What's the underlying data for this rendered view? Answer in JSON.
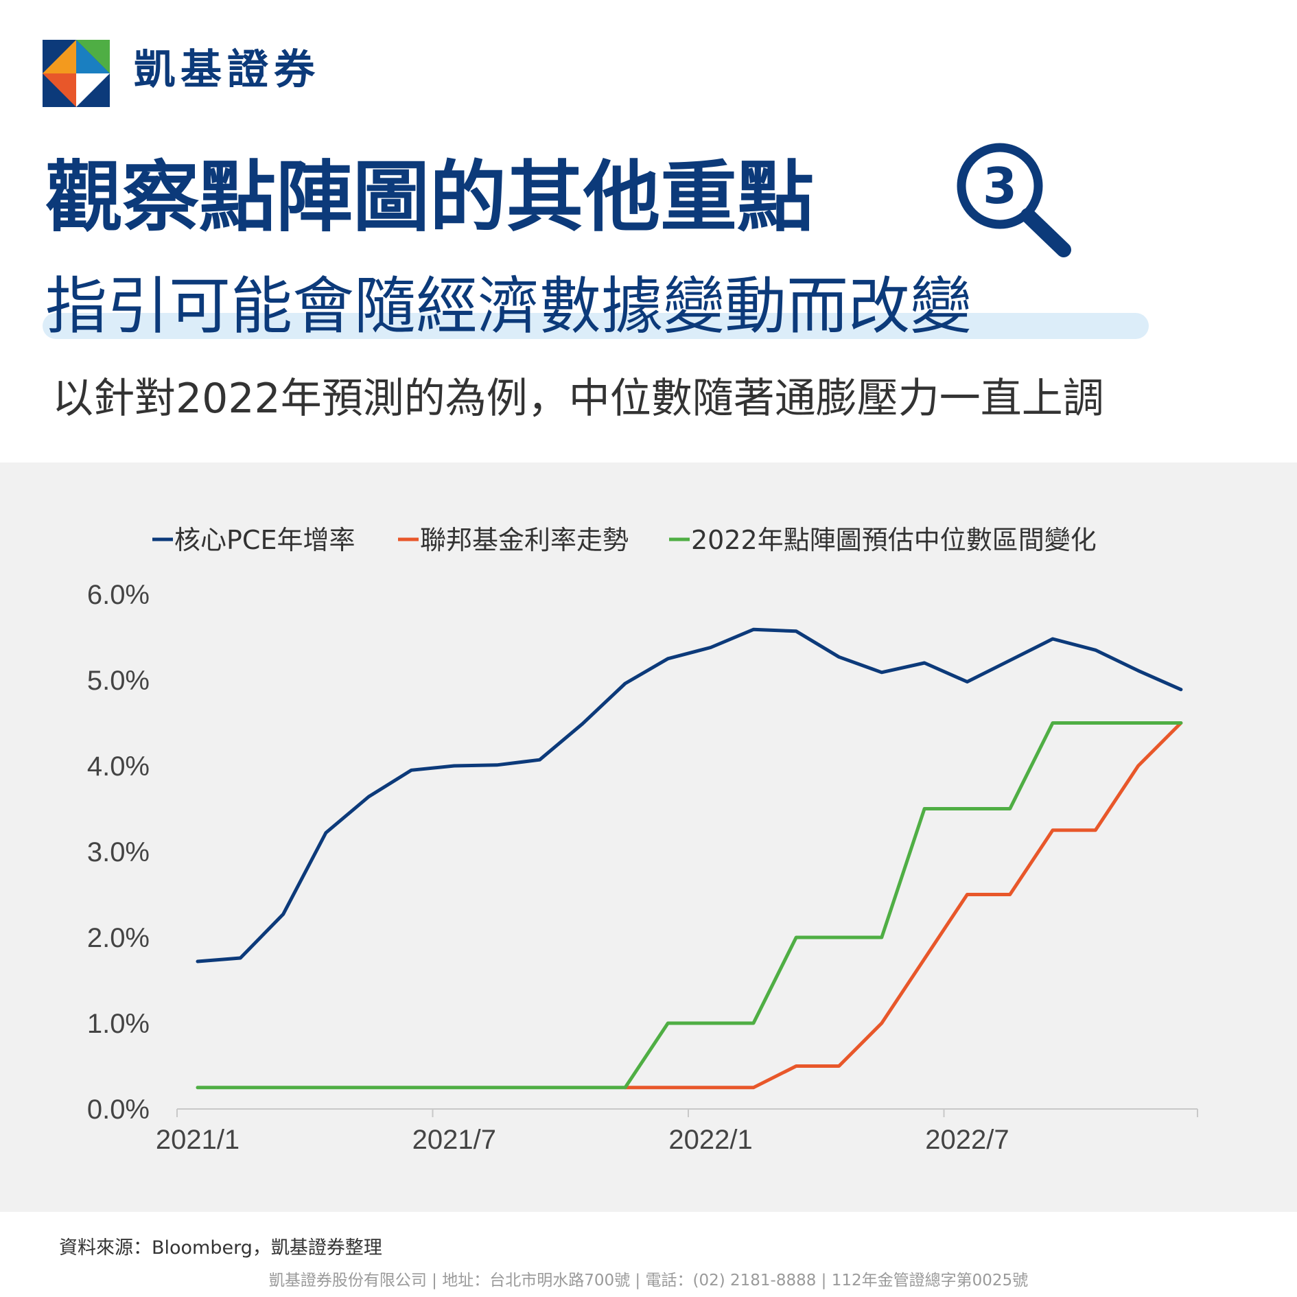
{
  "brand": {
    "name": "凱基證券",
    "logo": "kgi-logo"
  },
  "title": "觀察點陣圖的其他重點",
  "badge": {
    "number": "3",
    "icon": "magnifier-icon"
  },
  "subtitle": "指引可能會隨經濟數據變動而改變",
  "description": "以針對2022年預測的為例，中位數隨著通膨壓力一直上調",
  "colors": {
    "navy": "#0c3a7a",
    "pce": "#0c3a7a",
    "fed": "#e8572a",
    "dot": "#4fae44",
    "panel": "#f1f1f1"
  },
  "chart_data": {
    "type": "line",
    "title": "",
    "xlabel": "",
    "ylabel": "",
    "x": [
      "2021/1",
      "2021/2",
      "2021/3",
      "2021/4",
      "2021/5",
      "2021/6",
      "2021/7",
      "2021/8",
      "2021/9",
      "2021/10",
      "2021/11",
      "2021/12",
      "2022/1",
      "2022/2",
      "2022/3",
      "2022/4",
      "2022/5",
      "2022/6",
      "2022/7",
      "2022/8",
      "2022/9",
      "2022/10",
      "2022/11",
      "2022/12",
      "2023/1"
    ],
    "x_ticks": [
      "2021/1",
      "2021/7",
      "2022/1",
      "2022/7"
    ],
    "y_ticks": [
      "0.0%",
      "1.0%",
      "2.0%",
      "3.0%",
      "4.0%",
      "5.0%",
      "6.0%"
    ],
    "ylim": [
      0,
      6
    ],
    "grid": false,
    "legend_position": "top",
    "series": [
      {
        "name": "核心PCE年增率",
        "color": "#0c3a7a",
        "values": [
          1.72,
          1.76,
          2.27,
          3.22,
          3.64,
          3.95,
          4.0,
          4.01,
          4.07,
          4.49,
          4.96,
          5.25,
          5.38,
          5.59,
          5.57,
          5.27,
          5.09,
          5.2,
          4.98,
          5.23,
          5.48,
          5.35,
          5.11,
          4.89,
          null
        ]
      },
      {
        "name": "聯邦基金利率走勢",
        "color": "#e8572a",
        "values": [
          null,
          null,
          null,
          null,
          null,
          null,
          null,
          null,
          null,
          null,
          0.25,
          0.25,
          0.25,
          0.25,
          0.5,
          0.5,
          1.0,
          1.75,
          2.5,
          2.5,
          3.25,
          3.25,
          4.0,
          4.5,
          null
        ]
      },
      {
        "name": "2022年點陣圖預估中位數區間變化",
        "color": "#4fae44",
        "values": [
          0.25,
          0.25,
          0.25,
          0.25,
          0.25,
          0.25,
          0.25,
          0.25,
          0.25,
          0.25,
          0.25,
          1.0,
          1.0,
          1.0,
          2.0,
          2.0,
          2.0,
          3.5,
          3.5,
          3.5,
          4.5,
          4.5,
          4.5,
          4.5,
          null
        ]
      }
    ]
  },
  "source": "資料來源：Bloomberg，凱基證券整理",
  "footer": "凱基證券股份有限公司 | 地址：台北市明水路700號 | 電話：(02) 2181-8888 | 112年金管證總字第0025號"
}
